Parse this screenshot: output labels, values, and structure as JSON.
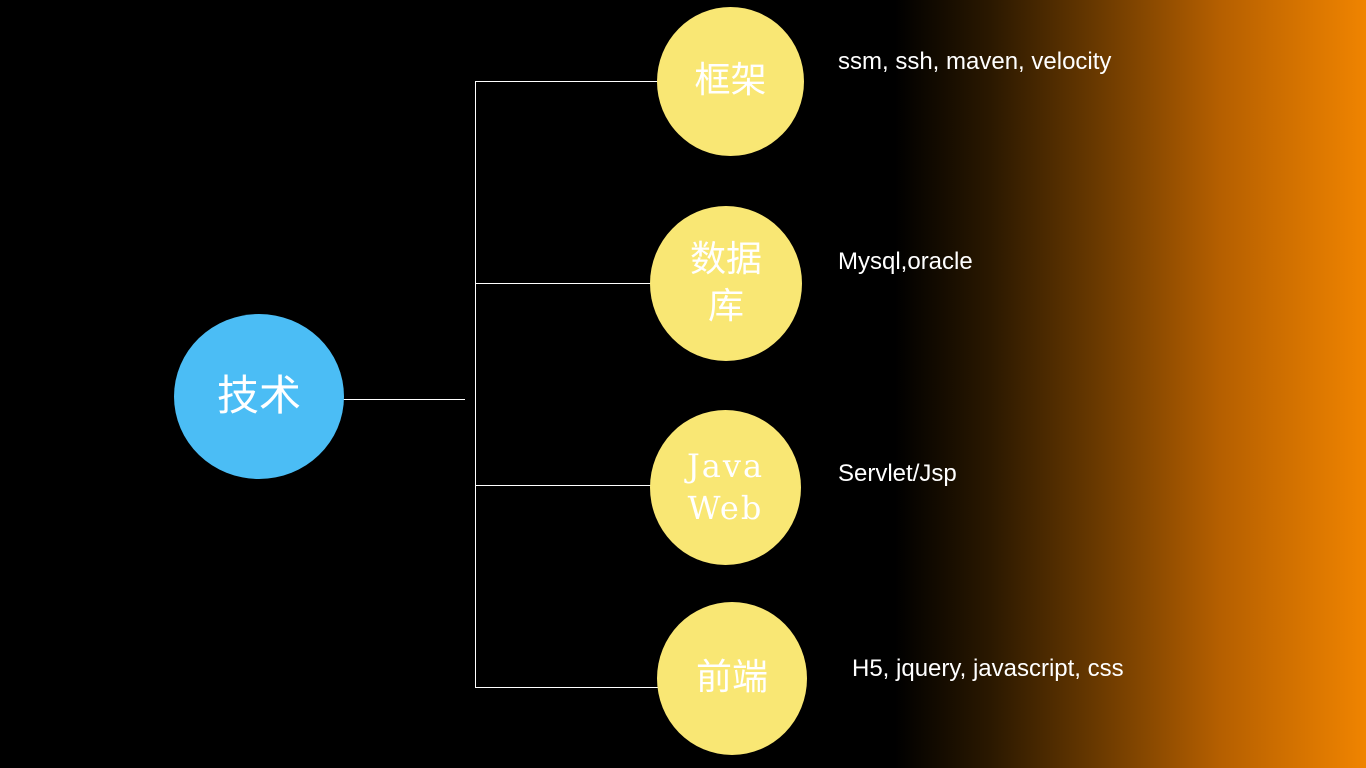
{
  "diagram": {
    "root": {
      "label": "技术",
      "color": "#4bbdf5"
    },
    "branches": [
      {
        "node": "框架",
        "detail": "ssm, ssh, maven, velocity"
      },
      {
        "node": "数据库",
        "detail": "Mysql,oracle"
      },
      {
        "node": "Java Web",
        "detail": "Servlet/Jsp"
      },
      {
        "node": "前端",
        "detail": "H5, jquery, javascript, css"
      }
    ],
    "node_color": "#f9e774",
    "background_accent": "#f08400"
  }
}
